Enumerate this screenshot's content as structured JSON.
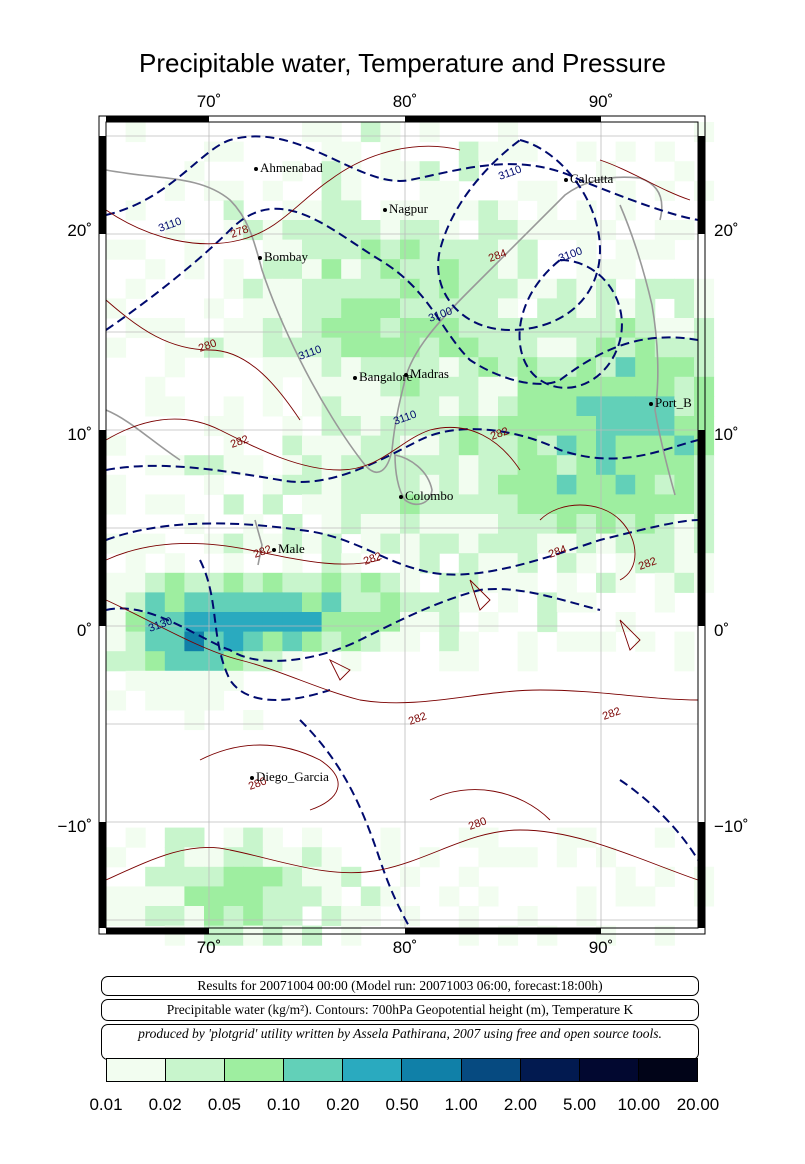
{
  "title": "Precipitable water, Temperature and Pressure",
  "map": {
    "lon_ticks": [
      "70˚",
      "80˚",
      "90˚"
    ],
    "lat_ticks": [
      "20˚",
      "10˚",
      "0˚",
      "−10˚"
    ],
    "cities": [
      {
        "name": "Ahmenabad"
      },
      {
        "name": "Nagpur"
      },
      {
        "name": "Calcutta"
      },
      {
        "name": "Bombay"
      },
      {
        "name": "Bangalore"
      },
      {
        "name": "Madras"
      },
      {
        "name": "Port_B"
      },
      {
        "name": "Colombo"
      },
      {
        "name": "Male"
      },
      {
        "name": "Diego_Garcia"
      }
    ],
    "contour_labels": [
      "3110",
      "3110",
      "3100",
      "3100",
      "3110",
      "3110",
      "3130",
      "278",
      "280",
      "282",
      "282",
      "284",
      "282",
      "282",
      "282",
      "280",
      "282",
      "282",
      "280",
      "284"
    ],
    "colors": {
      "geopotential_contour": "#000a6e",
      "temperature_contour": "#7a0000",
      "coastline": "#999999",
      "grid": "#bbbbbb"
    }
  },
  "info": {
    "line1": "Results for 20071004 00:00 (Model run: 20071003 06:00, forecast:18:00h)",
    "line2": "Precipitable water (kg/m²).  Contours: 700hPa Geopotential height (m), Temperature K",
    "line3": "produced by 'plotgrid' utility written by Assela Pathirana, 2007 using free and open source tools."
  },
  "legend": {
    "labels": [
      "0.01",
      "0.02",
      "0.05",
      "0.10",
      "0.20",
      "0.50",
      "1.00",
      "2.00",
      "5.00",
      "10.00",
      "20.00"
    ],
    "colors": [
      "#f2fdf0",
      "#c8f5cc",
      "#9eeea0",
      "#62d0b8",
      "#2aaabf",
      "#1080a8",
      "#064a80",
      "#021a50",
      "#020830",
      "#010418"
    ]
  }
}
